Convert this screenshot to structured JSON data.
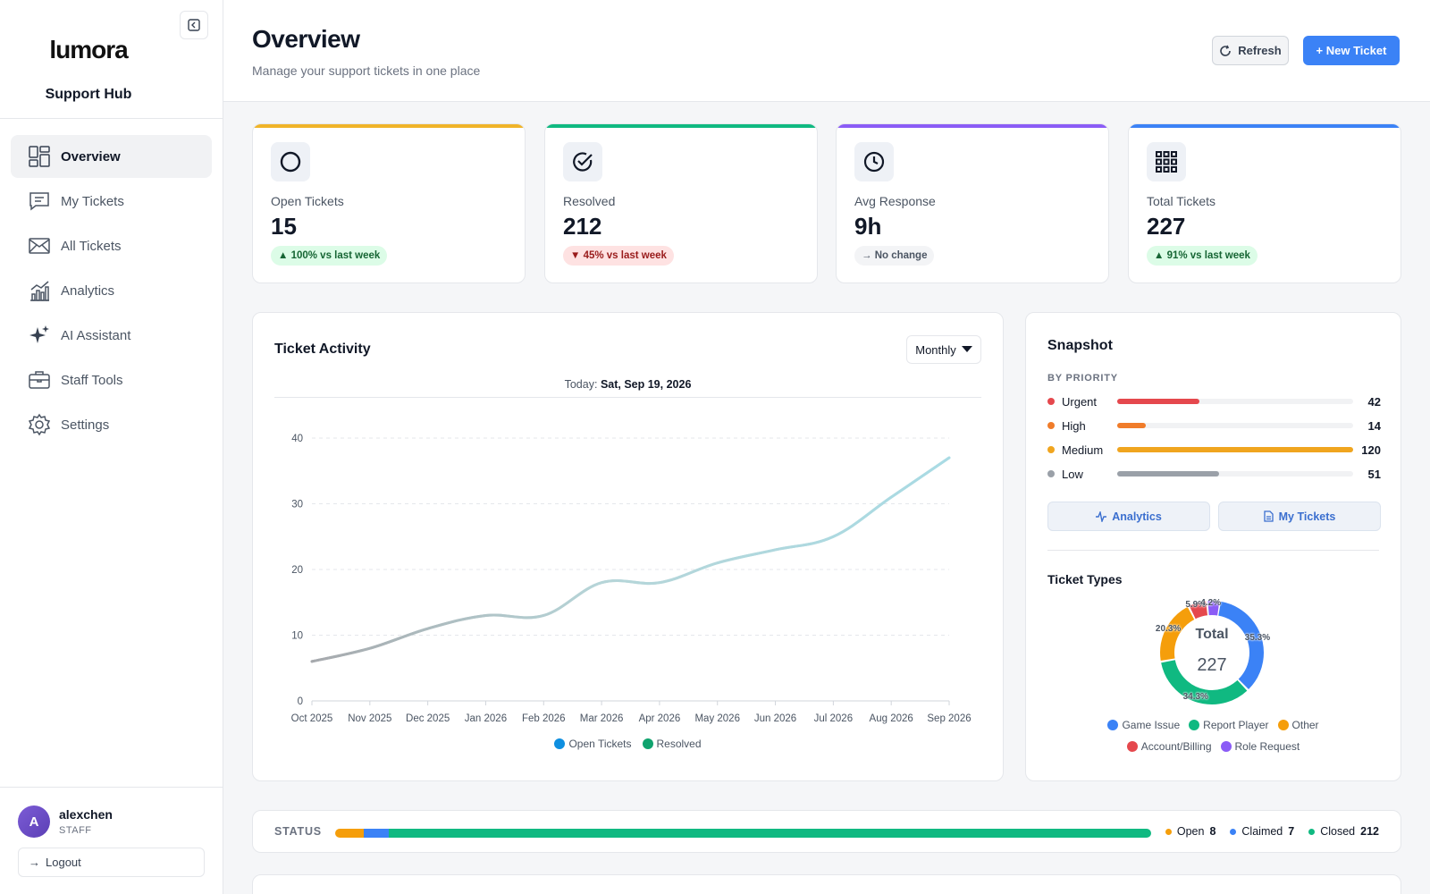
{
  "brand": {
    "logo": "lumora",
    "subtitle": "Support Hub"
  },
  "nav": [
    {
      "label": "Overview",
      "icon": "layout-dashboard-icon",
      "active": true
    },
    {
      "label": "My Tickets",
      "icon": "message-square-icon"
    },
    {
      "label": "All Tickets",
      "icon": "mail-icon"
    },
    {
      "label": "Analytics",
      "icon": "chart-bars-icon"
    },
    {
      "label": "AI Assistant",
      "icon": "sparkles-icon"
    },
    {
      "label": "Staff Tools",
      "icon": "briefcase-icon"
    },
    {
      "label": "Settings",
      "icon": "gear-icon"
    }
  ],
  "user": {
    "initial": "A",
    "name": "alexchen",
    "role": "STAFF",
    "logout": "Logout"
  },
  "header": {
    "title": "Overview",
    "subtitle": "Manage your support tickets in one place",
    "refresh": "Refresh",
    "new_ticket": "+ New Ticket"
  },
  "stats": [
    {
      "label": "Open Tickets",
      "value": "15",
      "badge": "▲ 100% vs last week",
      "trend": "up",
      "accent": "#f0b429",
      "icon": "circle-icon"
    },
    {
      "label": "Resolved",
      "value": "212",
      "badge": "▼ 45% vs last week",
      "trend": "down",
      "accent": "#10b981",
      "icon": "check-circle-icon"
    },
    {
      "label": "Avg Response",
      "value": "9h",
      "badge": "→ No change",
      "trend": "flat",
      "accent": "#8b5cf6",
      "icon": "clock-icon"
    },
    {
      "label": "Total Tickets",
      "value": "227",
      "badge": "▲ 91% vs last week",
      "trend": "up",
      "accent": "#3b82f6",
      "icon": "grid-icon"
    }
  ],
  "activity": {
    "title": "Ticket Activity",
    "range": "Monthly",
    "today_label": "Today:",
    "today_value": "Sat, Sep 19, 2026"
  },
  "chart_data": {
    "type": "line",
    "categories": [
      "Oct 2025",
      "Nov 2025",
      "Dec 2025",
      "Jan 2026",
      "Feb 2026",
      "Mar 2026",
      "Apr 2026",
      "May 2026",
      "Jun 2026",
      "Jul 2026",
      "Aug 2026",
      "Sep 2026"
    ],
    "series": [
      {
        "name": "Open Tickets",
        "color": "#0e8fe0",
        "values": [
          6,
          8,
          11,
          13,
          13,
          18,
          18,
          21,
          23,
          25,
          31,
          37
        ]
      },
      {
        "name": "Resolved",
        "color": "#10a36e",
        "values": [
          6,
          8,
          11,
          13,
          13,
          18,
          18,
          21,
          23,
          25,
          31,
          37
        ]
      }
    ],
    "ylim": [
      0,
      40
    ],
    "yticks": [
      0,
      10,
      20,
      30,
      40
    ],
    "grid": true,
    "legend": "bottom"
  },
  "snapshot": {
    "title": "Snapshot",
    "priority_label": "BY PRIORITY",
    "priorities": [
      {
        "name": "Urgent",
        "count": 42,
        "fraction": 0.35,
        "color": "#e5484d"
      },
      {
        "name": "High",
        "count": 14,
        "fraction": 0.12,
        "color": "#f07c2a"
      },
      {
        "name": "Medium",
        "count": 120,
        "fraction": 1.0,
        "color": "#f0a51f"
      },
      {
        "name": "Low",
        "count": 51,
        "fraction": 0.43,
        "color": "#9aa0a8"
      }
    ],
    "analytics_button": "Analytics",
    "my_tickets_button": "My Tickets",
    "types_title": "Ticket Types",
    "total_label": "Total",
    "total_value": "227",
    "types": [
      {
        "name": "Game Issue",
        "pct": 35.3,
        "label": "35.3%",
        "color": "#3b82f6"
      },
      {
        "name": "Report Player",
        "pct": 34.3,
        "label": "34.3%",
        "color": "#10b981"
      },
      {
        "name": "Other",
        "pct": 20.3,
        "label": "20.3%",
        "color": "#f59e0b"
      },
      {
        "name": "Account/Billing",
        "pct": 5.9,
        "label": "5.9%",
        "color": "#e5484d"
      },
      {
        "name": "Role Request",
        "pct": 4.2,
        "label": "4.2%",
        "color": "#8b5cf6"
      }
    ]
  },
  "status": {
    "label": "STATUS",
    "items": [
      {
        "name": "Open",
        "count": 8,
        "color": "#f59e0b"
      },
      {
        "name": "Claimed",
        "count": 7,
        "color": "#3b82f6"
      },
      {
        "name": "Closed",
        "count": 212,
        "color": "#10b981"
      }
    ]
  }
}
